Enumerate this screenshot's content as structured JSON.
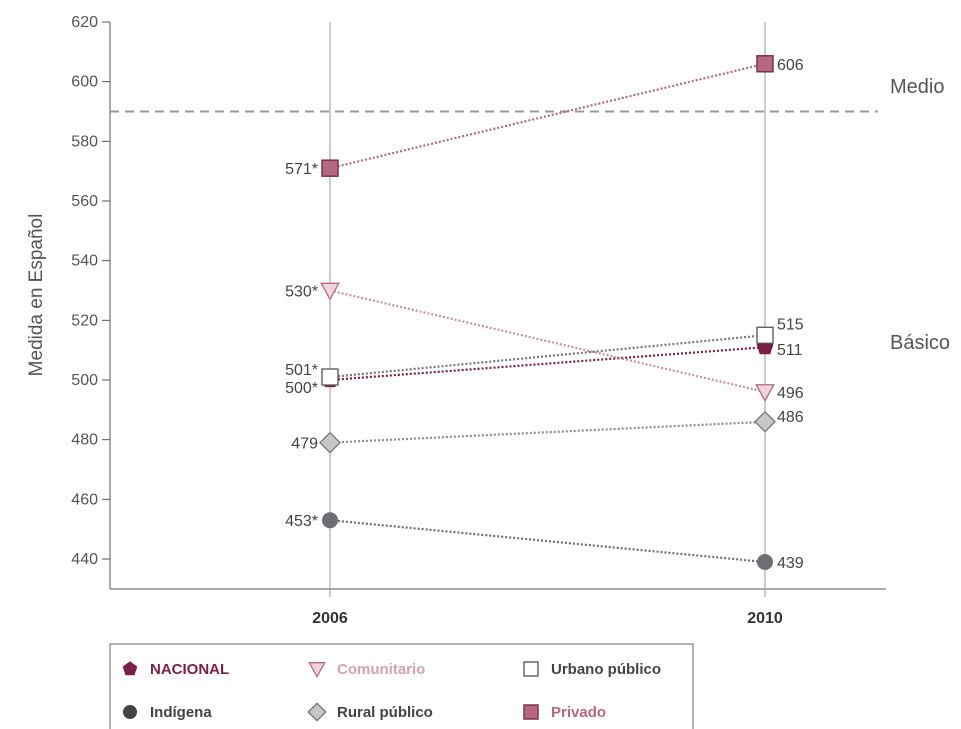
{
  "chart_data": {
    "type": "line",
    "title": "",
    "xlabel": "",
    "ylabel": "Medida en Español",
    "x": [
      "2006",
      "2010"
    ],
    "ylim": [
      430,
      620
    ],
    "yticks": [
      440,
      460,
      480,
      500,
      520,
      540,
      560,
      580,
      600,
      620
    ],
    "grid": false,
    "reference_lines": [
      {
        "label": "Medio",
        "value": 590
      },
      {
        "label": "Básico",
        "value": null
      }
    ],
    "series": [
      {
        "name": "NACIONAL",
        "values": [
          500,
          511
        ],
        "labels": [
          "500*",
          "511"
        ],
        "color": "#7a1f45",
        "marker": "pentagon",
        "label_side": [
          "left",
          "right"
        ]
      },
      {
        "name": "Comunitario",
        "values": [
          530,
          496
        ],
        "labels": [
          "530*",
          "496"
        ],
        "color": "#c98fa4",
        "marker": "triangle-down",
        "label_side": [
          "left",
          "right"
        ]
      },
      {
        "name": "Urbano público",
        "values": [
          501,
          515
        ],
        "labels": [
          "501*",
          "515"
        ],
        "color": "#777777",
        "marker": "square-open",
        "label_side": [
          "left",
          "right"
        ]
      },
      {
        "name": "Indígena",
        "values": [
          453,
          439
        ],
        "labels": [
          "453*",
          "439"
        ],
        "color": "#6d6e71",
        "marker": "circle",
        "label_side": [
          "left",
          "right"
        ]
      },
      {
        "name": "Rural público",
        "values": [
          479,
          486
        ],
        "labels": [
          "479",
          "486"
        ],
        "color": "#8c8c8c",
        "marker": "diamond",
        "label_side": [
          "left",
          "right"
        ]
      },
      {
        "name": "Privado",
        "values": [
          571,
          606
        ],
        "labels": [
          "571*",
          "606"
        ],
        "color": "#b5687f",
        "marker": "square",
        "label_side": [
          "left",
          "right"
        ]
      }
    ],
    "legend": {
      "placement": "bottom",
      "items": [
        {
          "label": "NACIONAL",
          "color": "#7a1f45",
          "marker": "pentagon"
        },
        {
          "label": "Comunitario",
          "color": "#d4a0b3",
          "marker": "triangle-down"
        },
        {
          "label": "Urbano público",
          "color": "#444444",
          "marker": "square-open"
        },
        {
          "label": "Indígena",
          "color": "#444444",
          "marker": "circle"
        },
        {
          "label": "Rural público",
          "color": "#444444",
          "marker": "diamond"
        },
        {
          "label": "Privado",
          "color": "#b5687f",
          "marker": "square"
        }
      ]
    }
  }
}
